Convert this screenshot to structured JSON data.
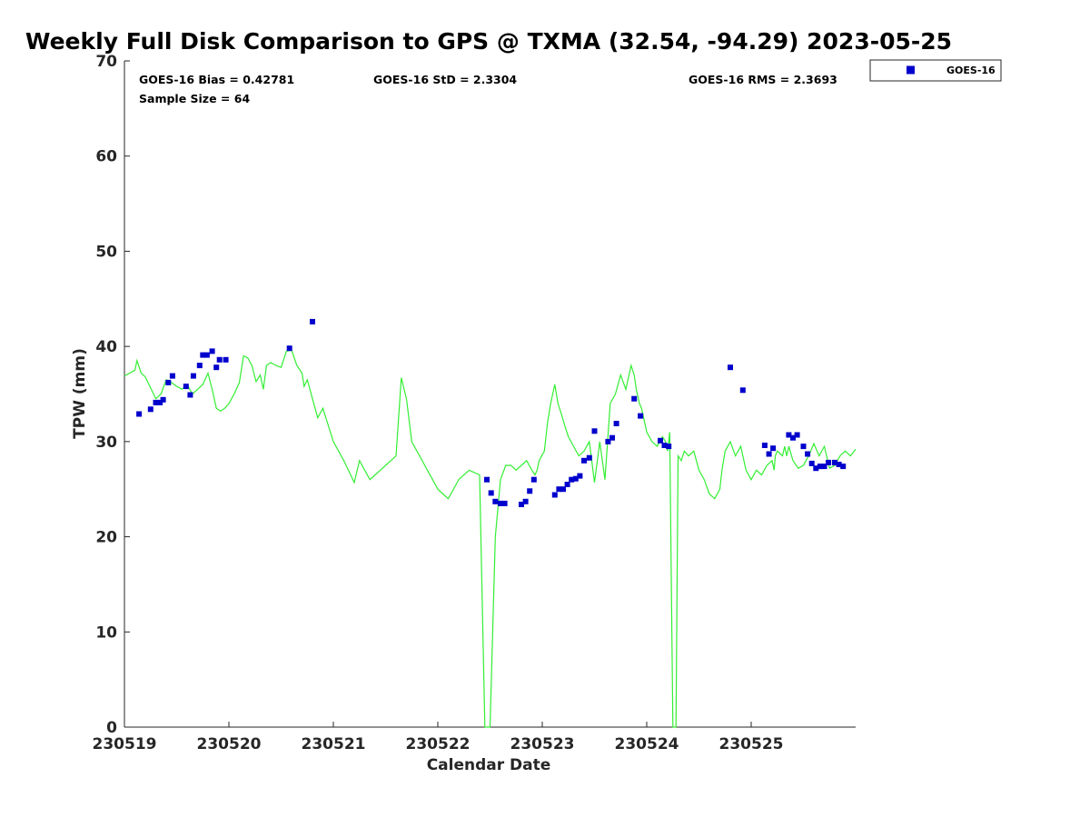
{
  "chart_data": {
    "type": "scatter",
    "title": "Weekly Full Disk Comparison to GPS @ TXMA (32.54, -94.29) 2023-05-25",
    "xlabel": "Calendar Date",
    "ylabel": "TPW (mm)",
    "xlim": [
      "230519",
      "230526"
    ],
    "ylim": [
      0,
      70
    ],
    "x_tick_labels": [
      "230519",
      "230520",
      "230521",
      "230522",
      "230523",
      "230524",
      "230525"
    ],
    "y_tick_labels": [
      "0",
      "10",
      "20",
      "30",
      "40",
      "50",
      "60",
      "70"
    ],
    "grid": false,
    "legend_position": "top-right outside",
    "stats": {
      "bias": "GOES-16 Bias = 0.42781",
      "std": "GOES-16 StD = 2.3304",
      "rms": "GOES-16 RMS = 2.3693",
      "sample": "Sample Size = 64"
    },
    "colors": {
      "goes": "#0000cc",
      "gps": "#33ee33",
      "axis": "#262626"
    },
    "series": [
      {
        "name": "GOES-16",
        "kind": "scatter",
        "x_day_offset": [
          0.14,
          0.25,
          0.3,
          0.34,
          0.37,
          0.42,
          0.46,
          0.59,
          0.63,
          0.66,
          0.72,
          0.75,
          0.79,
          0.84,
          0.88,
          0.91,
          0.97,
          1.58,
          1.8,
          3.47,
          3.51,
          3.55,
          3.6,
          3.64,
          3.8,
          3.84,
          3.88,
          3.92,
          4.12,
          4.16,
          4.2,
          4.24,
          4.28,
          4.32,
          4.36,
          4.4,
          4.45,
          4.5,
          4.63,
          4.67,
          4.71,
          4.88,
          4.94,
          5.13,
          5.17,
          5.21,
          5.8,
          5.92,
          6.13,
          6.17,
          6.21,
          6.36,
          6.4,
          6.44,
          6.5,
          6.54,
          6.58,
          6.62,
          6.66,
          6.7,
          6.74,
          6.8,
          6.84,
          6.88
        ],
        "values": [
          32.9,
          33.4,
          34.1,
          34.1,
          34.4,
          36.2,
          36.9,
          35.8,
          34.9,
          36.9,
          38.0,
          39.1,
          39.1,
          39.5,
          37.8,
          38.6,
          38.6,
          39.8,
          42.6,
          26.0,
          24.6,
          23.7,
          23.5,
          23.5,
          23.4,
          23.7,
          24.8,
          26.0,
          24.4,
          25.0,
          25.0,
          25.5,
          26.0,
          26.1,
          26.4,
          28.0,
          28.3,
          31.1,
          30.0,
          30.4,
          31.9,
          34.5,
          32.7,
          30.1,
          29.6,
          29.5,
          37.8,
          35.4,
          29.6,
          28.7,
          29.3,
          30.7,
          30.4,
          30.7,
          29.5,
          28.7,
          27.7,
          27.2,
          27.4,
          27.4,
          27.8,
          27.8,
          27.6,
          27.4
        ]
      },
      {
        "name": "",
        "kind": "line",
        "x_day_offset": [
          0.0,
          0.1,
          0.12,
          0.16,
          0.2,
          0.3,
          0.35,
          0.4,
          0.45,
          0.5,
          0.55,
          0.6,
          0.65,
          0.7,
          0.75,
          0.8,
          0.85,
          0.88,
          0.92,
          0.96,
          1.0,
          1.05,
          1.1,
          1.14,
          1.18,
          1.22,
          1.26,
          1.3,
          1.33,
          1.36,
          1.4,
          1.45,
          1.5,
          1.55,
          1.6,
          1.65,
          1.7,
          1.72,
          1.75,
          1.8,
          1.85,
          1.9,
          2.0,
          2.1,
          2.2,
          2.25,
          2.3,
          2.35,
          2.4,
          2.45,
          2.5,
          2.55,
          2.6,
          2.65,
          2.7,
          2.75,
          2.8,
          2.85,
          2.9,
          2.95,
          3.0,
          3.05,
          3.1,
          3.2,
          3.3,
          3.4,
          3.45,
          3.5,
          3.55,
          3.6,
          3.65,
          3.7,
          3.75,
          3.8,
          3.85,
          3.9,
          3.93,
          3.95,
          3.97,
          4.02,
          4.05,
          4.08,
          4.1,
          4.12,
          4.15,
          4.18,
          4.22,
          4.25,
          4.3,
          4.35,
          4.4,
          4.45,
          4.5,
          4.55,
          4.6,
          4.65,
          4.7,
          4.75,
          4.8,
          4.85,
          4.88,
          4.9,
          4.93,
          4.95,
          5.0,
          5.05,
          5.1,
          5.15,
          5.18,
          5.2,
          5.22,
          5.25,
          5.28,
          5.3,
          5.33,
          5.36,
          5.4,
          5.45,
          5.5,
          5.55,
          5.6,
          5.65,
          5.7,
          5.72,
          5.75,
          5.8,
          5.85,
          5.9,
          5.95,
          6.0,
          6.05,
          6.1,
          6.15,
          6.2,
          6.22,
          6.23,
          6.25,
          6.3,
          6.32,
          6.34,
          6.36,
          6.4,
          6.45,
          6.5,
          6.55,
          6.6,
          6.65,
          6.7,
          6.75,
          6.8,
          6.85,
          6.9,
          6.95,
          7.0
        ],
        "values": [
          36.9,
          37.5,
          38.5,
          37.2,
          36.8,
          34.5,
          35.0,
          36.5,
          36.2,
          35.8,
          35.5,
          36.0,
          35.0,
          35.5,
          36.0,
          37.2,
          35.0,
          33.5,
          33.2,
          33.5,
          34.0,
          35.0,
          36.2,
          39.0,
          38.8,
          38.0,
          36.3,
          37.0,
          35.5,
          38.0,
          38.3,
          38.0,
          37.8,
          39.5,
          39.6,
          38.0,
          37.2,
          35.8,
          36.5,
          34.5,
          32.5,
          33.5,
          30.0,
          28.0,
          25.7,
          28.0,
          27.0,
          26.0,
          26.5,
          27.0,
          27.5,
          28.0,
          28.5,
          36.7,
          34.5,
          30.0,
          29.0,
          28.0,
          27.0,
          26.0,
          25.0,
          24.5,
          24.0,
          26.0,
          27.0,
          26.5,
          0.0,
          0.0,
          20.0,
          26.0,
          27.5,
          27.5,
          27.0,
          27.5,
          28.0,
          27.0,
          26.5,
          27.0,
          28.0,
          29.0,
          32.0,
          34.0,
          35.0,
          36.0,
          34.0,
          33.0,
          31.5,
          30.5,
          29.5,
          28.5,
          29.0,
          30.0,
          25.7,
          30.0,
          26.0,
          34.0,
          35.0,
          37.0,
          35.5,
          38.0,
          37.0,
          35.5,
          34.0,
          33.5,
          31.0,
          30.0,
          29.5,
          30.5,
          30.0,
          29.0,
          31.0,
          0.0,
          0.0,
          28.5,
          28.0,
          29.0,
          28.5,
          29.0,
          27.0,
          26.0,
          24.5,
          24.0,
          25.0,
          27.0,
          29.0,
          30.0,
          28.5,
          29.5,
          27.0,
          26.0,
          27.0,
          26.5,
          27.5,
          28.0,
          27.0,
          28.5,
          29.0,
          28.5,
          29.5,
          28.5,
          29.5,
          28.0,
          27.2,
          27.5,
          28.5,
          29.8,
          28.5,
          29.5,
          27.2,
          27.5,
          28.5,
          29.0,
          28.5,
          29.2
        ]
      }
    ]
  }
}
